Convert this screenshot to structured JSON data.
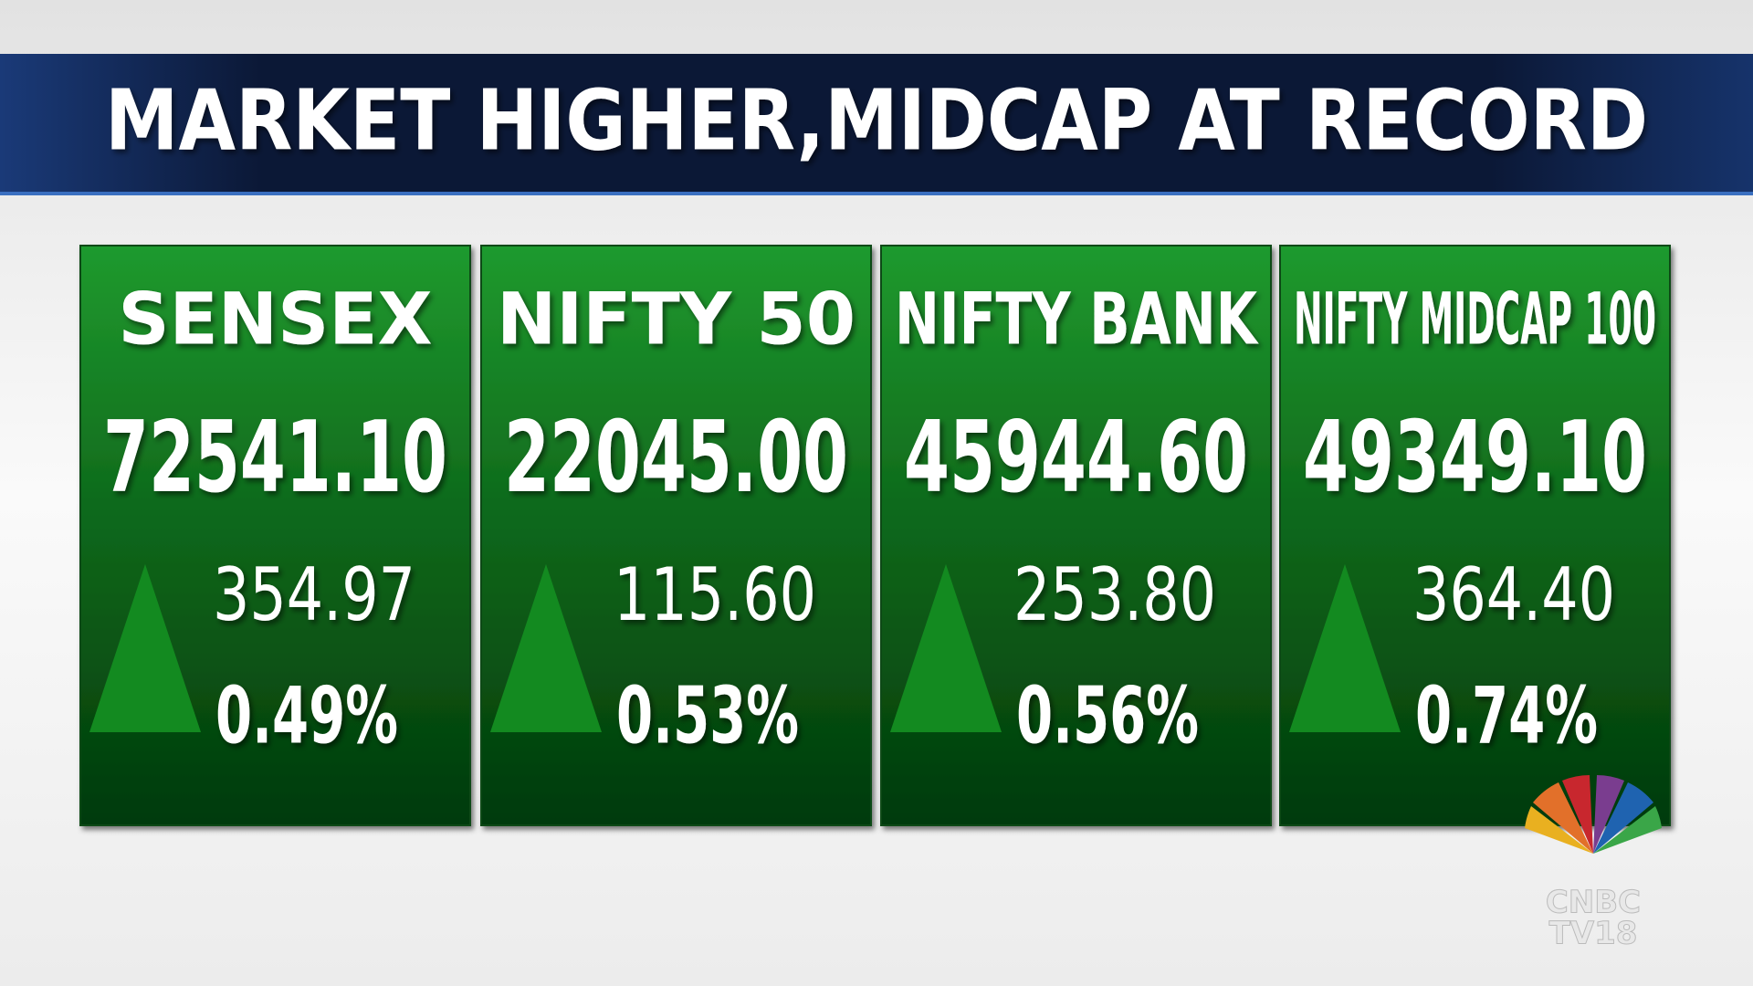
{
  "header": {
    "title": "MARKET HIGHER,MIDCAP AT RECORD"
  },
  "cards": [
    {
      "name": "SENSEX",
      "value": "72541.10",
      "change": "354.97",
      "percent": "0.49%"
    },
    {
      "name": "NIFTY 50",
      "value": "22045.00",
      "change": "115.60",
      "percent": "0.53%"
    },
    {
      "name": "NIFTY BANK",
      "value": "45944.60",
      "change": "253.80",
      "percent": "0.56%"
    },
    {
      "name": "NIFTY MIDCAP 100",
      "value": "49349.10",
      "change": "364.40",
      "percent": "0.74%"
    }
  ],
  "logo": {
    "text": [
      "CNBC",
      "TV18"
    ]
  }
}
